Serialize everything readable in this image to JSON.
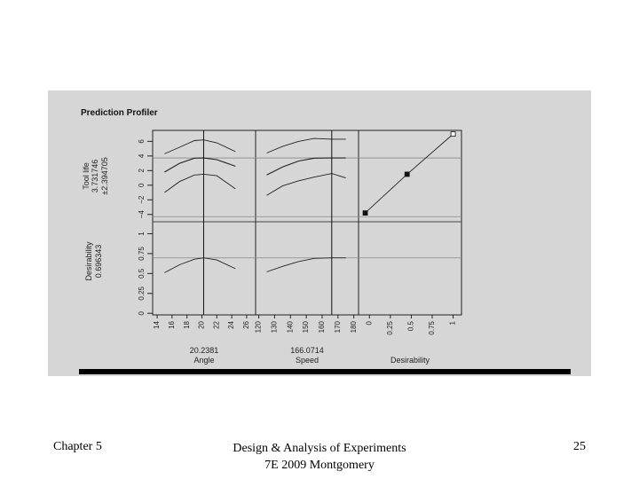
{
  "slide": {
    "chapter": "Chapter 5",
    "book_line1": "Design & Analysis of Experiments",
    "book_line2": "7E 2009 Montgomery",
    "page_number": "25"
  },
  "chart_data": {
    "type": "line",
    "title": "Prediction Profiler",
    "response": {
      "name": "Tool life",
      "current": "3.731746",
      "interval": "±2.394705",
      "ylim": [
        -5,
        7.5
      ],
      "ticks": [
        "6",
        "4",
        "2",
        "0",
        "−2",
        "−4"
      ],
      "tick_values": [
        6,
        4,
        2,
        0,
        -2,
        -4
      ]
    },
    "desirability": {
      "name": "Desirability",
      "current": "0.696343",
      "ylim": [
        -0.02,
        1.15
      ],
      "ticks": [
        "1",
        "0.75",
        "0.5",
        "0.25",
        "0"
      ],
      "tick_values": [
        1,
        0.75,
        0.5,
        0.25,
        0
      ],
      "current_value": 0.696343
    },
    "factors": [
      {
        "name": "Angle",
        "current": "20.2381",
        "current_value": 20.2381,
        "xlim": [
          13.4,
          27.2
        ],
        "ticks": [
          "14",
          "16",
          "18",
          "20",
          "22",
          "24",
          "26"
        ],
        "tick_values": [
          14,
          16,
          18,
          20,
          22,
          24,
          26
        ],
        "x": [
          15,
          17,
          19,
          20.24,
          22,
          24.5
        ],
        "upper": [
          4.3,
          5.2,
          6.1,
          6.2,
          5.8,
          4.6
        ],
        "predicted": [
          1.8,
          3.0,
          3.7,
          3.73,
          3.5,
          2.6
        ],
        "lower": [
          -1.0,
          0.5,
          1.4,
          1.5,
          1.3,
          -0.5
        ],
        "desirability": [
          0.51,
          0.61,
          0.68,
          0.696,
          0.67,
          0.56
        ]
      },
      {
        "name": "Speed",
        "current": "166.0714",
        "current_value": 166.0714,
        "xlim": [
          118,
          183
        ],
        "ticks": [
          "120",
          "130",
          "140",
          "150",
          "160",
          "170",
          "180"
        ],
        "tick_values": [
          120,
          130,
          140,
          150,
          160,
          170,
          180
        ],
        "x": [
          125,
          135,
          145,
          155,
          166.07,
          175
        ],
        "upper": [
          4.4,
          5.3,
          6.0,
          6.4,
          6.3,
          6.3
        ],
        "predicted": [
          1.4,
          2.5,
          3.3,
          3.7,
          3.73,
          3.73
        ],
        "lower": [
          -1.4,
          -0.1,
          0.6,
          1.1,
          1.6,
          1.0
        ],
        "desirability": [
          0.52,
          0.59,
          0.65,
          0.69,
          0.696,
          0.696
        ]
      },
      {
        "name": "Desirability",
        "xlim": [
          -0.13,
          1.1
        ],
        "ticks": [
          "0",
          "0.25",
          "0.5",
          "0.75",
          "1"
        ],
        "tick_values": [
          0,
          0.25,
          0.5,
          0.75,
          1
        ],
        "x": [
          -0.05,
          0.45,
          1.0
        ],
        "y": [
          -3.8,
          1.5,
          7.0
        ]
      }
    ]
  }
}
